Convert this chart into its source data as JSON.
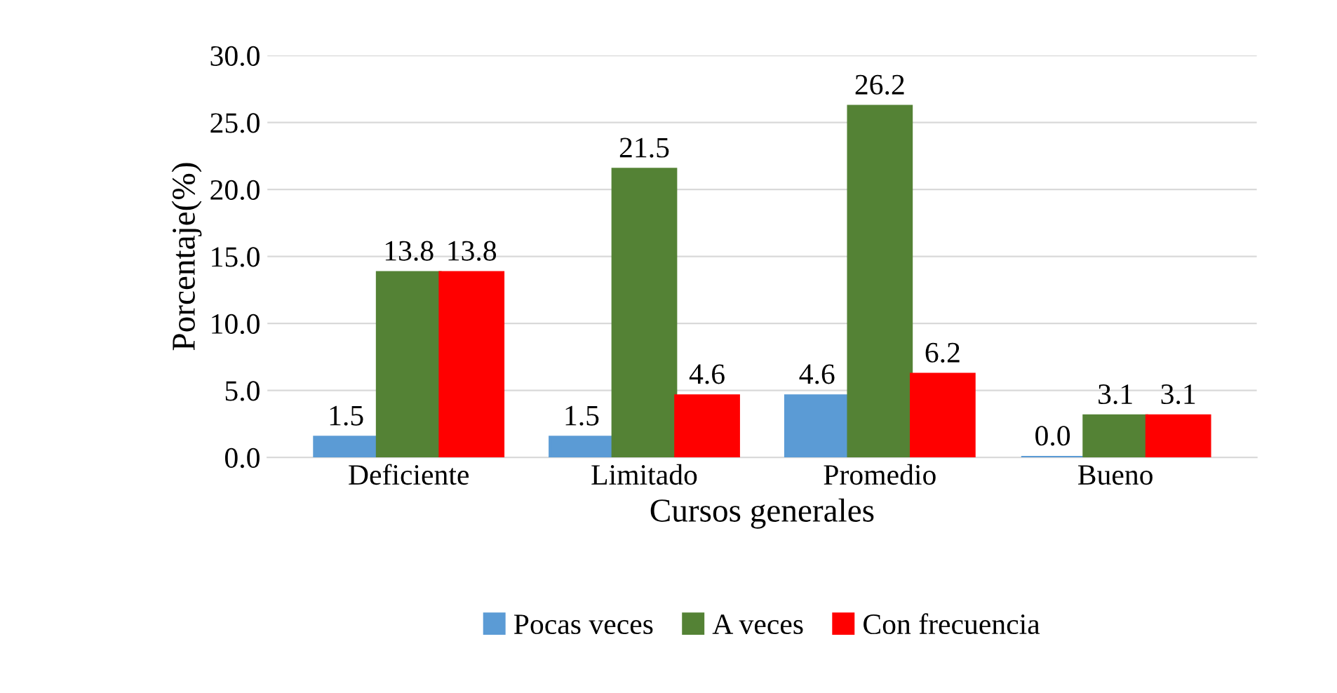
{
  "chart_data": {
    "type": "bar",
    "xlabel": "Cursos generales",
    "ylabel": "Porcentaje(%)",
    "categories": [
      "Deficiente",
      "Limitado",
      "Promedio",
      "Bueno"
    ],
    "series": [
      {
        "name": "Pocas veces",
        "color": "#5b9bd5",
        "values": [
          1.5,
          1.5,
          4.6,
          0
        ],
        "value_labels": [
          "1.5",
          "1.5",
          "4.6",
          "0.0"
        ]
      },
      {
        "name": "A veces",
        "color": "#548235",
        "values": [
          13.8,
          21.5,
          26.2,
          3.1
        ],
        "value_labels": [
          "13.8",
          "21.5",
          "26.2",
          "3.1"
        ]
      },
      {
        "name": "Con frecuencia",
        "color": "#ff0000",
        "values": [
          13.8,
          4.6,
          6.2,
          3.1
        ],
        "value_labels": [
          "13.8",
          "4.6",
          "6.2",
          "3.1"
        ]
      }
    ],
    "ylim": [
      0,
      30
    ],
    "yticks": [
      {
        "value": 0,
        "label": "0.0"
      },
      {
        "value": 5,
        "label": "5.0"
      },
      {
        "value": 10,
        "label": "10.0"
      },
      {
        "value": 15,
        "label": "15.0"
      },
      {
        "value": 20,
        "label": "20.0"
      },
      {
        "value": 25,
        "label": "25.0"
      },
      {
        "value": 30,
        "label": "30.0"
      }
    ],
    "grid": "y",
    "legend": "bottom"
  }
}
